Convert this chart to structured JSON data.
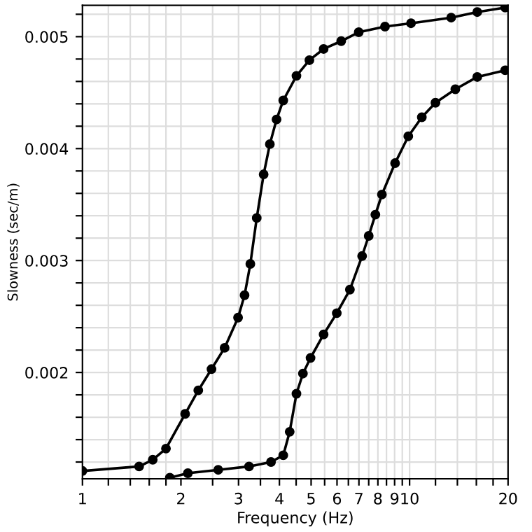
{
  "chart_data": {
    "type": "line",
    "xlabel": "Frequency (Hz)",
    "ylabel": "Slowness (sec/m)",
    "log": "x",
    "marker": "circle",
    "line_style": "solid",
    "grid": true,
    "xlim": [
      1,
      20
    ],
    "ylim": [
      0.00105,
      0.00528
    ],
    "xticks": [
      1,
      {
        "value": 1.2,
        "label": null
      },
      {
        "value": 1.4,
        "label": null
      },
      {
        "value": 1.6,
        "label": null
      },
      {
        "value": 1.8,
        "label": null
      },
      2,
      {
        "value": 2.5,
        "label": null
      },
      3,
      {
        "value": 3.5,
        "label": null
      },
      4,
      {
        "value": 4.5,
        "label": null
      },
      5,
      {
        "value": 5.5,
        "label": null
      },
      6,
      {
        "value": 6.5,
        "label": null
      },
      7,
      {
        "value": 7.5,
        "label": null
      },
      8,
      {
        "value": 8.5,
        "label": null
      },
      9,
      {
        "value": 9.5,
        "label": null
      },
      10,
      {
        "value": 12,
        "label": null
      },
      {
        "value": 14,
        "label": null
      },
      {
        "value": 16,
        "label": null
      },
      {
        "value": 18,
        "label": null
      },
      20
    ],
    "yticks": [
      {
        "value": 0.0012,
        "label": null
      },
      {
        "value": 0.0014,
        "label": null
      },
      {
        "value": 0.0016,
        "label": null
      },
      {
        "value": 0.0018,
        "label": null
      },
      0.002,
      {
        "value": 0.0022,
        "label": null
      },
      {
        "value": 0.0024,
        "label": null
      },
      {
        "value": 0.0026,
        "label": null
      },
      {
        "value": 0.0028,
        "label": null
      },
      0.003,
      {
        "value": 0.0032,
        "label": null
      },
      {
        "value": 0.0034,
        "label": null
      },
      {
        "value": 0.0036,
        "label": null
      },
      {
        "value": 0.0038,
        "label": null
      },
      0.004,
      {
        "value": 0.0042,
        "label": null
      },
      {
        "value": 0.0044,
        "label": null
      },
      {
        "value": 0.0046,
        "label": null
      },
      {
        "value": 0.0048,
        "label": null
      },
      0.005,
      {
        "value": 0.0052,
        "label": null
      }
    ],
    "series": [
      {
        "color": "#000000",
        "x": [
          1,
          1.49,
          1.64,
          1.8,
          2.06,
          2.26,
          2.48,
          2.72,
          2.99,
          3.13,
          3.26,
          3.41,
          3.58,
          3.74,
          3.92,
          4.11,
          4.51,
          4.94,
          5.46,
          6.18,
          6.99,
          8.41,
          10.1,
          13.4,
          16.1,
          19.6
        ],
        "values": [
          0.00112,
          0.00116,
          0.00122,
          0.00132,
          0.00163,
          0.00184,
          0.00203,
          0.00222,
          0.00249,
          0.00269,
          0.00297,
          0.00338,
          0.00377,
          0.00404,
          0.00426,
          0.00443,
          0.00465,
          0.00479,
          0.00489,
          0.00496,
          0.00504,
          0.00509,
          0.00512,
          0.00517,
          0.00522,
          0.00526
        ]
      },
      {
        "color": "#000000",
        "x": [
          1.85,
          2.1,
          2.6,
          3.23,
          3.77,
          4.11,
          4.3,
          4.51,
          4.72,
          4.98,
          5.46,
          5.99,
          6.57,
          7.16,
          7.5,
          7.86,
          8.23,
          9.03,
          9.91,
          10.9,
          12.0,
          13.8,
          16.1,
          19.6
        ],
        "values": [
          0.00106,
          0.0011,
          0.00113,
          0.00116,
          0.0012,
          0.00126,
          0.00147,
          0.00181,
          0.00199,
          0.00213,
          0.00234,
          0.00253,
          0.00274,
          0.00304,
          0.00322,
          0.00341,
          0.00359,
          0.00387,
          0.00411,
          0.00428,
          0.00441,
          0.00453,
          0.00464,
          0.0047
        ]
      }
    ]
  }
}
